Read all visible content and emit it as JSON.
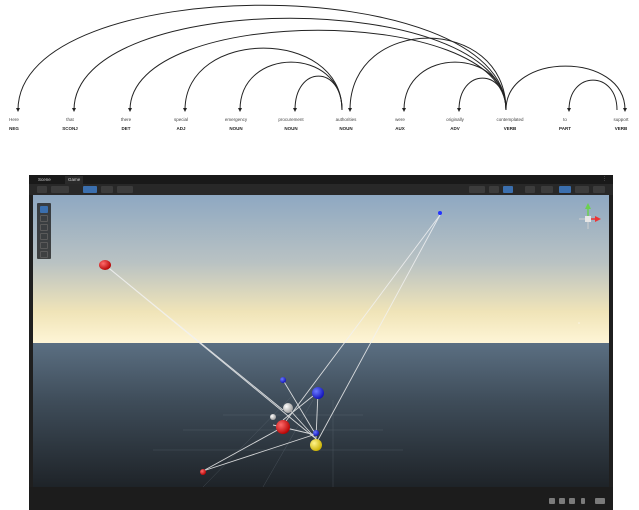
{
  "parse": {
    "tokens": [
      {
        "word": "Here",
        "tag": "NEG"
      },
      {
        "word": "that",
        "tag": "SCONJ"
      },
      {
        "word": "there",
        "tag": "DET"
      },
      {
        "word": "special",
        "tag": "ADJ"
      },
      {
        "word": "emergency",
        "tag": "NOUN"
      },
      {
        "word": "procurement",
        "tag": "NOUN"
      },
      {
        "word": "authorities",
        "tag": "NOUN"
      },
      {
        "word": "were",
        "tag": "AUX"
      },
      {
        "word": "originally",
        "tag": "ADV"
      },
      {
        "word": "contemplated",
        "tag": "VERB"
      },
      {
        "word": "to",
        "tag": "PART"
      },
      {
        "word": "support",
        "tag": "VERB"
      }
    ]
  },
  "editor": {
    "tabs": [
      {
        "label": "Scene"
      },
      {
        "label": "Game"
      }
    ]
  }
}
